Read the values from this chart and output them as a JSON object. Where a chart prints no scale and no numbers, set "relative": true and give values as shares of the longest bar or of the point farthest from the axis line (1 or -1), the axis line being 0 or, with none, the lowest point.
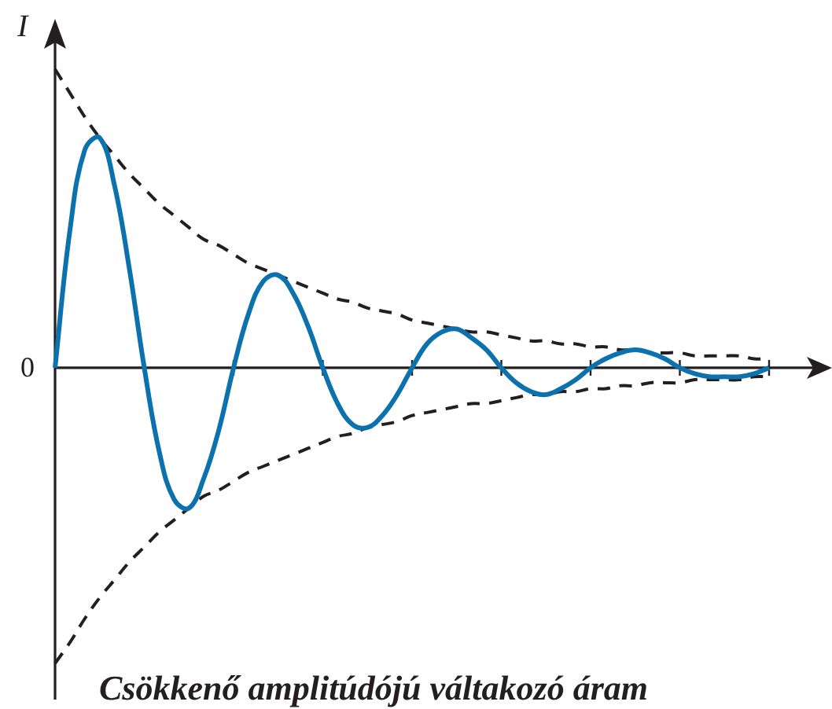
{
  "chart_data": {
    "type": "line",
    "title": "Csökkenő amplitúdójú váltakozó áram",
    "ylabel": "I",
    "relative": true,
    "tick_labels": false,
    "marker": "none",
    "categories": [
      null,
      null,
      null,
      null,
      null,
      null,
      null,
      null,
      null,
      null,
      null,
      null,
      null,
      null,
      null,
      null,
      null,
      null,
      null,
      null,
      null,
      null,
      null,
      null,
      null,
      null,
      null,
      null,
      null,
      null,
      null,
      null,
      null,
      null,
      null,
      null,
      null,
      null,
      null,
      null,
      null,
      null,
      null,
      null,
      null,
      null,
      null,
      null,
      null
    ],
    "series": [
      {
        "color": "#0b72ad",
        "line_style": "solid",
        "values": [
          0,
          0.46,
          0.73,
          0.77,
          0.61,
          0.33,
          0,
          -0.28,
          -0.44,
          -0.47,
          -0.37,
          -0.21,
          0,
          0.18,
          0.29,
          0.31,
          0.25,
          0.14,
          0,
          -0.12,
          -0.19,
          -0.2,
          -0.16,
          -0.09,
          0,
          0.08,
          0.12,
          0.13,
          0.1,
          0.06,
          0,
          -0.05,
          -0.08,
          -0.09,
          -0.07,
          -0.04,
          0,
          0.03,
          0.05,
          0.06,
          0.05,
          0.03,
          0,
          -0.02,
          -0.03,
          -0.03,
          -0.03,
          -0.02,
          0
        ]
      },
      {
        "color": "#231f20",
        "line_style": "dashed",
        "values": [
          1,
          0.92,
          0.84,
          0.77,
          0.71,
          0.65,
          0.6,
          0.55,
          0.51,
          0.47,
          0.43,
          0.41,
          0.38,
          0.35,
          0.33,
          0.31,
          0.29,
          0.27,
          0.25,
          0.23,
          0.22,
          0.2,
          0.19,
          0.18,
          0.16,
          0.15,
          0.14,
          0.13,
          0.12,
          0.12,
          0.11,
          0.1,
          0.09,
          0.09,
          0.08,
          0.08,
          0.07,
          0.07,
          0.06,
          0.06,
          0.05,
          0.05,
          0.05,
          0.04,
          0.04,
          0.04,
          0.04,
          0.03,
          0.03
        ]
      },
      {
        "color": "#231f20",
        "line_style": "dashed",
        "values": [
          -0.99,
          -0.92,
          -0.84,
          -0.77,
          -0.71,
          -0.65,
          -0.6,
          -0.55,
          -0.51,
          -0.47,
          -0.43,
          -0.41,
          -0.38,
          -0.35,
          -0.33,
          -0.31,
          -0.29,
          -0.27,
          -0.25,
          -0.23,
          -0.22,
          -0.2,
          -0.19,
          -0.18,
          -0.16,
          -0.15,
          -0.14,
          -0.13,
          -0.12,
          -0.12,
          -0.11,
          -0.1,
          -0.09,
          -0.09,
          -0.08,
          -0.08,
          -0.07,
          -0.07,
          -0.06,
          -0.06,
          -0.05,
          -0.05,
          -0.05,
          -0.04,
          -0.04,
          -0.04,
          -0.04,
          -0.03,
          -0.03
        ]
      }
    ],
    "annotations": [
      "0"
    ]
  }
}
